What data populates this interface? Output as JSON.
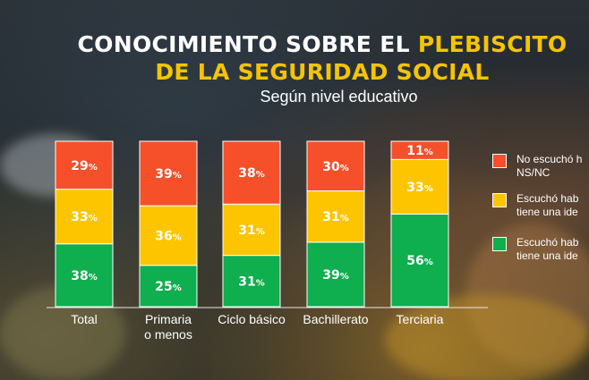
{
  "title": {
    "line1_white": "CONOCIMIENTO SOBRE EL ",
    "line1_highlight": "PLEBISCITO",
    "line2_highlight": "DE LA SEGURIDAD SOCIAL"
  },
  "subtitle": "Según nivel educativo",
  "colors": {
    "green": "#0fae4f",
    "yellow": "#fdc500",
    "red": "#f5502a",
    "highlight": "#f5c400"
  },
  "legend": [
    {
      "line1": "No escuchó h",
      "line2": "NS/NC",
      "color": "#f5502a"
    },
    {
      "line1": "Escuchó hab",
      "line2": "tiene una ide",
      "color": "#fdc500"
    },
    {
      "line1": "Escuchó hab",
      "line2": "tiene una ide",
      "color": "#0fae4f"
    }
  ],
  "chart_data": {
    "type": "bar",
    "stacked": true,
    "title": "CONOCIMIENTO SOBRE EL PLEBISCITO DE LA SEGURIDAD SOCIAL",
    "subtitle": "Según nivel educativo",
    "categories": [
      [
        "Total"
      ],
      [
        "Primaria",
        "o menos"
      ],
      [
        "Ciclo básico"
      ],
      [
        "Bachillerato"
      ],
      [
        "Terciaria"
      ]
    ],
    "series": [
      {
        "name": "Escuchó hab / tiene una ide",
        "color": "#0fae4f",
        "values": [
          38,
          25,
          31,
          39,
          56
        ]
      },
      {
        "name": "Escuchó hab / tiene una ide",
        "color": "#fdc500",
        "values": [
          33,
          36,
          31,
          31,
          33
        ]
      },
      {
        "name": "No escuchó h / NS/NC",
        "color": "#f5502a",
        "values": [
          29,
          39,
          38,
          30,
          11
        ]
      }
    ],
    "value_suffix": "%",
    "ylim": [
      0,
      100
    ]
  }
}
